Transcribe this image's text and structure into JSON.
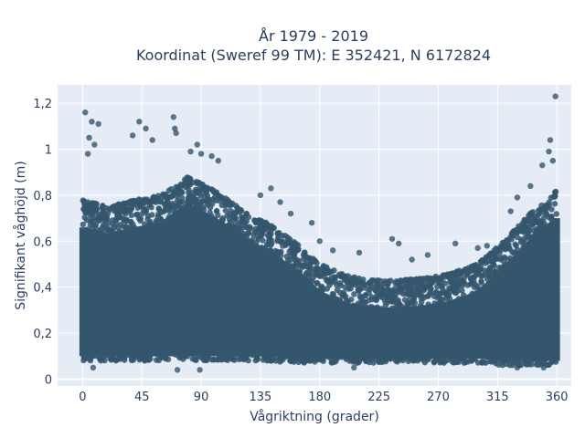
{
  "chart_data": {
    "type": "scatter",
    "title_lines": [
      "År 1979 - 2019",
      "Koordinat (Sweref 99 TM): E 352421, N 6172824"
    ],
    "xlabel": "Vågriktning (grader)",
    "ylabel": "Signifikant våghöjd (m)",
    "xlim": [
      -19,
      371
    ],
    "ylim": [
      -0.03,
      1.28
    ],
    "x_ticks": [
      0,
      45,
      90,
      135,
      180,
      225,
      270,
      315,
      360
    ],
    "x_tick_labels": [
      "0",
      "45",
      "90",
      "135",
      "180",
      "225",
      "270",
      "315",
      "360"
    ],
    "y_ticks": [
      0,
      0.2,
      0.4,
      0.6,
      0.8,
      1,
      1.2
    ],
    "y_tick_labels": [
      "0",
      "0,2",
      "0,4",
      "0,6",
      "0,8",
      "1",
      "1,2"
    ],
    "grid": true,
    "marker_color": "#34566d",
    "plot_background": "#e5ecf6",
    "envelope": {
      "direction": [
        0,
        20,
        40,
        60,
        80,
        100,
        120,
        140,
        160,
        180,
        200,
        220,
        240,
        260,
        280,
        300,
        320,
        340,
        360
      ],
      "dense_max": [
        0.78,
        0.75,
        0.78,
        0.8,
        0.88,
        0.82,
        0.74,
        0.68,
        0.6,
        0.5,
        0.45,
        0.43,
        0.43,
        0.44,
        0.46,
        0.5,
        0.6,
        0.72,
        0.82
      ],
      "dense_min": [
        0.08,
        0.08,
        0.08,
        0.08,
        0.08,
        0.08,
        0.08,
        0.08,
        0.07,
        0.07,
        0.07,
        0.07,
        0.07,
        0.07,
        0.07,
        0.07,
        0.06,
        0.06,
        0.06
      ]
    },
    "outliers": [
      {
        "x": 2,
        "y": 1.16
      },
      {
        "x": 5,
        "y": 1.05
      },
      {
        "x": 7,
        "y": 1.12
      },
      {
        "x": 12,
        "y": 1.11
      },
      {
        "x": 4,
        "y": 0.98
      },
      {
        "x": 9,
        "y": 1.02
      },
      {
        "x": 43,
        "y": 1.12
      },
      {
        "x": 48,
        "y": 1.09
      },
      {
        "x": 38,
        "y": 1.06
      },
      {
        "x": 53,
        "y": 1.04
      },
      {
        "x": 69,
        "y": 1.14
      },
      {
        "x": 70,
        "y": 1.09
      },
      {
        "x": 71,
        "y": 1.07
      },
      {
        "x": 82,
        "y": 0.99
      },
      {
        "x": 87,
        "y": 1.02
      },
      {
        "x": 90,
        "y": 0.98
      },
      {
        "x": 98,
        "y": 0.97
      },
      {
        "x": 103,
        "y": 0.95
      },
      {
        "x": 135,
        "y": 0.8
      },
      {
        "x": 143,
        "y": 0.83
      },
      {
        "x": 150,
        "y": 0.77
      },
      {
        "x": 158,
        "y": 0.72
      },
      {
        "x": 174,
        "y": 0.68
      },
      {
        "x": 180,
        "y": 0.6
      },
      {
        "x": 190,
        "y": 0.56
      },
      {
        "x": 210,
        "y": 0.55
      },
      {
        "x": 235,
        "y": 0.61
      },
      {
        "x": 240,
        "y": 0.59
      },
      {
        "x": 250,
        "y": 0.52
      },
      {
        "x": 262,
        "y": 0.54
      },
      {
        "x": 283,
        "y": 0.59
      },
      {
        "x": 300,
        "y": 0.57
      },
      {
        "x": 307,
        "y": 0.58
      },
      {
        "x": 325,
        "y": 0.73
      },
      {
        "x": 330,
        "y": 0.79
      },
      {
        "x": 340,
        "y": 0.84
      },
      {
        "x": 349,
        "y": 0.93
      },
      {
        "x": 354,
        "y": 0.99
      },
      {
        "x": 355,
        "y": 1.04
      },
      {
        "x": 357,
        "y": 0.95
      },
      {
        "x": 359,
        "y": 1.23
      },
      {
        "x": 72,
        "y": 0.04
      },
      {
        "x": 89,
        "y": 0.04
      },
      {
        "x": 8,
        "y": 0.05
      },
      {
        "x": 330,
        "y": 0.05
      },
      {
        "x": 206,
        "y": 0.05
      },
      {
        "x": 350,
        "y": 0.05
      }
    ]
  }
}
